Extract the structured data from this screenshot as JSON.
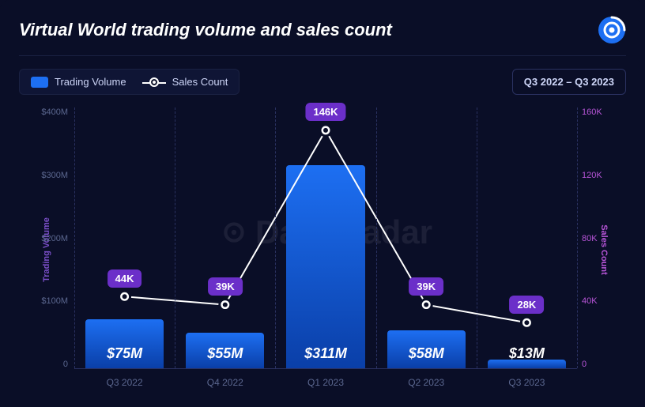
{
  "title": "Virtual World trading volume and sales count",
  "period_label": "Q3 2022 – Q3 2023",
  "legend": {
    "volume_label": "Trading Volume",
    "count_label": "Sales Count",
    "volume_color": "#1d6ff2"
  },
  "watermark": "DappRadar",
  "chart": {
    "type": "bar+line",
    "categories": [
      "Q3 2022",
      "Q4 2022",
      "Q1 2023",
      "Q2 2023",
      "Q3 2023"
    ],
    "left_axis": {
      "label": "Trading Volume",
      "min": 0,
      "max": 400,
      "tick_step": 100,
      "tick_labels": [
        "$400M",
        "$300M",
        "$200M",
        "$100M",
        "0"
      ],
      "label_color": "#7b4fc9",
      "tick_color": "#5b678f"
    },
    "right_axis": {
      "label": "Sales Count",
      "min": 0,
      "max": 160,
      "tick_step": 40,
      "tick_labels": [
        "160K",
        "120K",
        "80K",
        "40K",
        "0"
      ],
      "label_color": "#b855d8",
      "tick_color": "#b855d8"
    },
    "bars": {
      "values": [
        75,
        55,
        311,
        58,
        13
      ],
      "labels": [
        "$75M",
        "$55M",
        "$311M",
        "$58M",
        "$13M"
      ],
      "color_top": "#1d6ff2",
      "color_bottom": "#0a3fa8",
      "width_fraction": 0.78
    },
    "line": {
      "values": [
        44,
        39,
        146,
        39,
        28
      ],
      "labels": [
        "44K",
        "39K",
        "146K",
        "39K",
        "28K"
      ],
      "stroke": "#ffffff",
      "stroke_width": 2,
      "marker_fill": "#ffffff",
      "marker_stroke": "#0a0e27",
      "marker_radius": 7,
      "badge_bg": "#6b2fc9",
      "badge_color": "#ffffff"
    },
    "background": "#0a0e27",
    "grid_color": "#2a3160"
  }
}
